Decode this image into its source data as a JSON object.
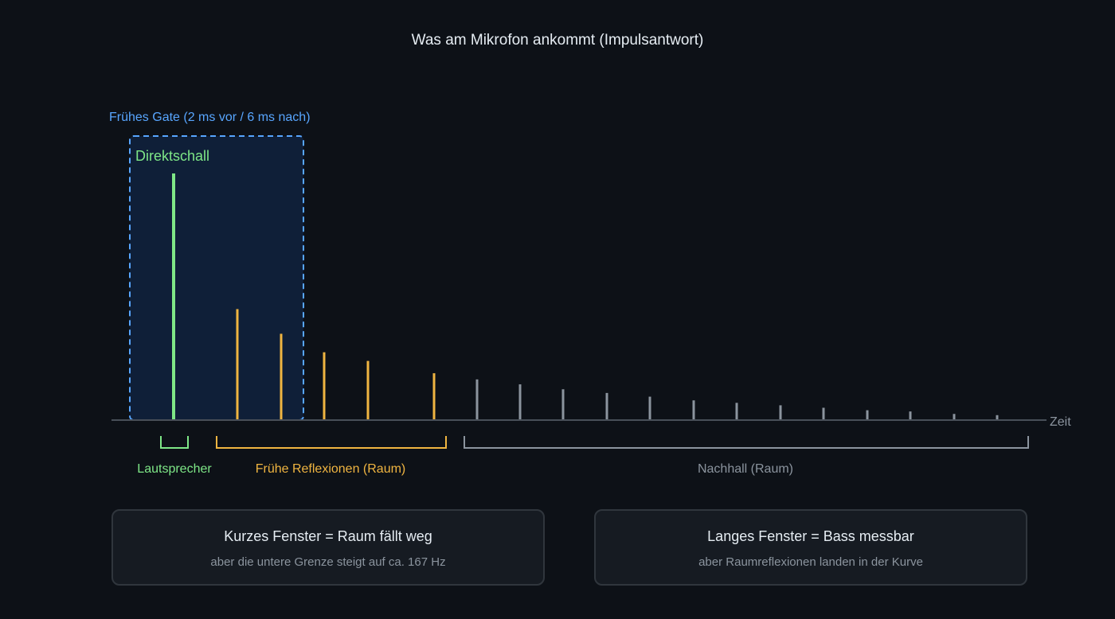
{
  "title": "Was am Mikrofon ankommt (Impulsantwort)",
  "axis_label": "Zeit",
  "gate": {
    "label": "Frühes Gate (2 ms vor / 6 ms nach)",
    "inner_label": "Direktschall"
  },
  "ranges": {
    "speaker": "Lautsprecher",
    "early": "Frühe Reflexionen (Raum)",
    "reverb": "Nachhall (Raum)"
  },
  "cards": {
    "short": {
      "title": "Kurzes Fenster = Raum fällt weg",
      "subtitle": "aber die untere Grenze steigt auf ca. 167 Hz"
    },
    "long": {
      "title": "Langes Fenster = Bass messbar",
      "subtitle": "aber Raumreflexionen landen in der Kurve"
    }
  },
  "colors": {
    "background": "#0d1117",
    "title": "#e6edf3",
    "axis": "#484f58",
    "direct": "#7ee787",
    "early": "#f0b541",
    "reverb": "#8b949e",
    "gate": "#58a6ff",
    "gate_fill": "#0f1f38"
  },
  "impulses": {
    "direct": [
      100
    ],
    "early": [
      45,
      35,
      27.5,
      24,
      19
    ],
    "reverb": [
      16.5,
      14.5,
      12.5,
      11,
      9.5,
      8,
      7,
      6,
      5,
      4,
      3.5,
      2.5,
      2
    ]
  }
}
